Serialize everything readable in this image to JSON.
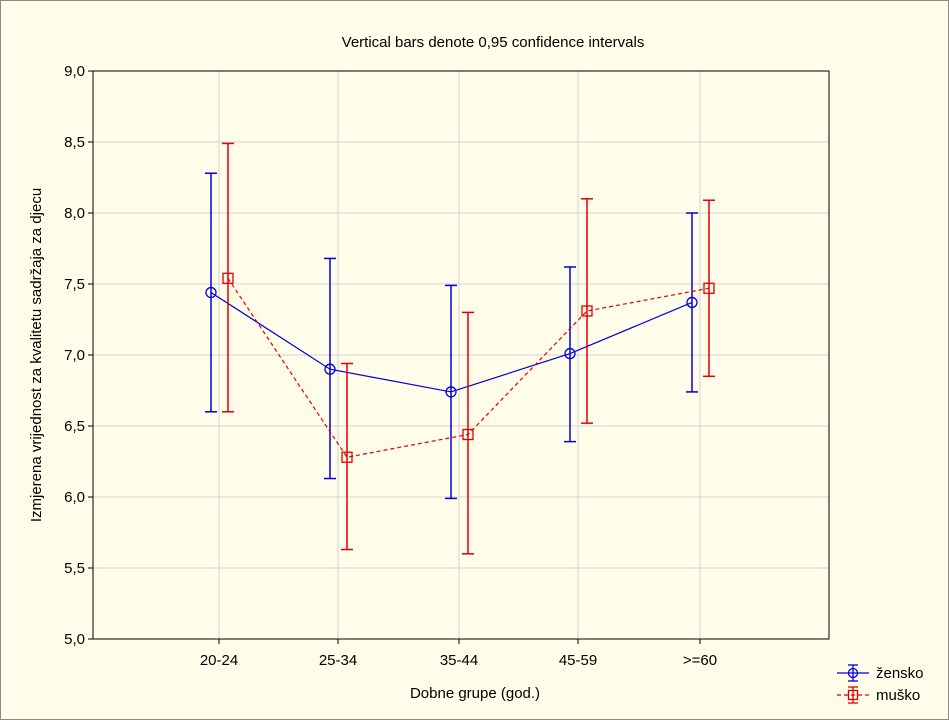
{
  "chart_data": {
    "type": "line",
    "title": "Vertical bars denote 0,95 confidence intervals",
    "xlabel": "Dobne grupe (god.)",
    "ylabel": "Izmjerena vrijednost za kvalitetu sadržaja za djecu",
    "categories": [
      "20-24",
      "25-34",
      "35-44",
      "45-59",
      ">=60"
    ],
    "ylim": [
      5.0,
      9.0
    ],
    "yticks": [
      "5,0",
      "5,5",
      "6,0",
      "6,5",
      "7,0",
      "7,5",
      "8,0",
      "8,5",
      "9,0"
    ],
    "grid": true,
    "legend_position": "bottom-right",
    "error_bars": "0,95 confidence intervals",
    "series": [
      {
        "name": "žensko",
        "color": "#0000dd",
        "line_style": "solid",
        "marker": "circle",
        "values": [
          7.44,
          6.9,
          6.74,
          7.01,
          7.37
        ],
        "lower": [
          6.6,
          6.13,
          5.99,
          6.39,
          6.74
        ],
        "upper": [
          8.28,
          7.68,
          7.49,
          7.62,
          8.0
        ]
      },
      {
        "name": "muško",
        "color": "#e00000",
        "line_style": "dashed",
        "marker": "square",
        "values": [
          7.54,
          6.28,
          6.44,
          7.31,
          7.47
        ],
        "lower": [
          6.6,
          5.63,
          5.6,
          6.52,
          6.85
        ],
        "upper": [
          8.49,
          6.94,
          7.3,
          8.1,
          8.09
        ]
      }
    ]
  }
}
